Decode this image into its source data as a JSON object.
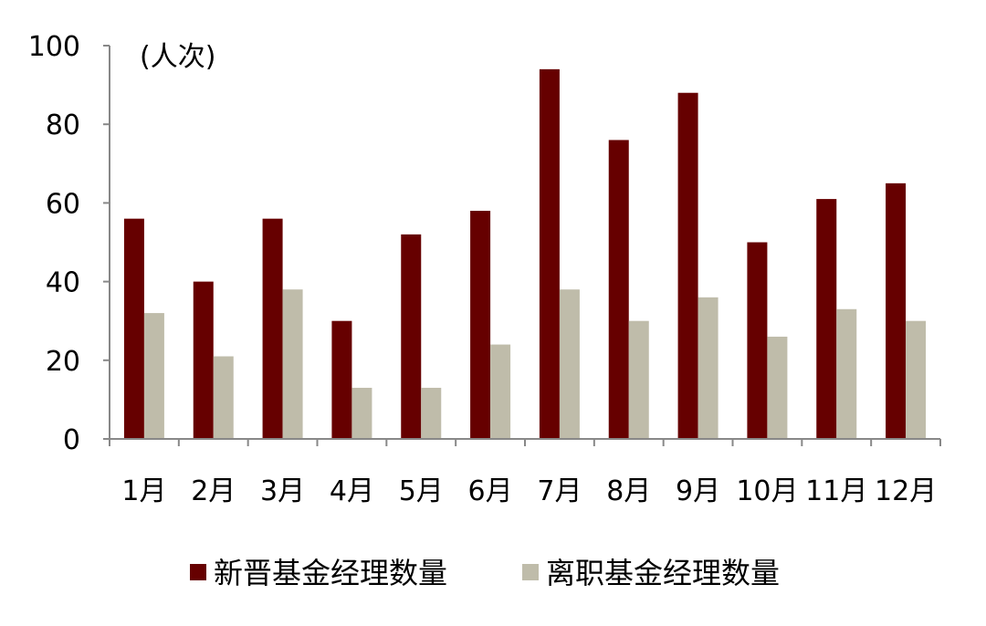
{
  "chart_data": {
    "type": "bar",
    "unit_label": "(人次)",
    "categories": [
      "1月",
      "2月",
      "3月",
      "4月",
      "5月",
      "6月",
      "7月",
      "8月",
      "9月",
      "10月",
      "11月",
      "12月"
    ],
    "series": [
      {
        "name": "新晋基金经理数量",
        "color": "#660000",
        "values": [
          56,
          40,
          56,
          30,
          52,
          58,
          94,
          76,
          88,
          50,
          61,
          65
        ]
      },
      {
        "name": "离职基金经理数量",
        "color": "#BFBCAA",
        "values": [
          32,
          21,
          38,
          13,
          13,
          24,
          38,
          30,
          36,
          26,
          33,
          30
        ]
      }
    ],
    "ylim": [
      0,
      100
    ],
    "yticks": [
      0,
      20,
      40,
      60,
      80,
      100
    ],
    "grid": false,
    "legend_position": "bottom"
  }
}
